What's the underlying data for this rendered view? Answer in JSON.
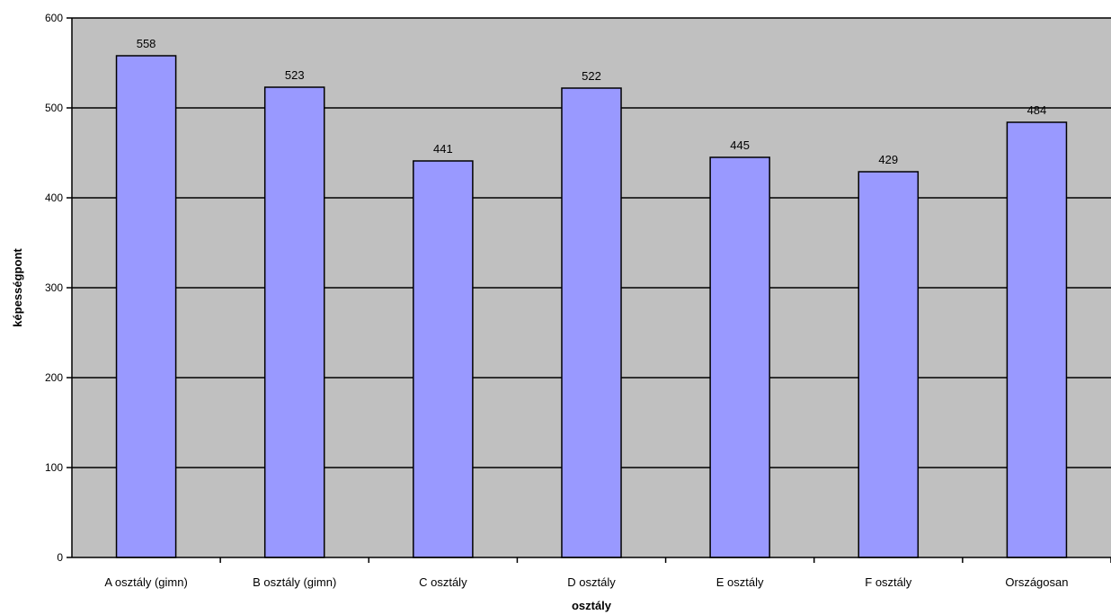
{
  "chart_data": {
    "type": "bar",
    "title": "",
    "xlabel": "osztály",
    "ylabel": "képességpont",
    "categories": [
      "A osztály (gimn)",
      "B osztály (gimn)",
      "C osztály",
      "D osztály",
      "E osztály",
      "F osztály",
      "Országosan"
    ],
    "values": [
      558,
      523,
      441,
      522,
      445,
      429,
      484
    ],
    "data_labels": [
      "558",
      "523",
      "441",
      "522",
      "445",
      "429",
      "484"
    ],
    "ylim": [
      0,
      600
    ],
    "yticks": [
      0,
      100,
      200,
      300,
      400,
      500,
      600
    ],
    "ytick_labels": [
      "0",
      "100",
      "200",
      "300",
      "400",
      "500",
      "600"
    ],
    "grid": true,
    "legend": "none",
    "colors": {
      "bar_fill": "#9999ff",
      "bar_stroke": "#000000",
      "plot_background": "#c0c0c0",
      "gridline": "#000000",
      "page_background": "#ffffff"
    }
  }
}
